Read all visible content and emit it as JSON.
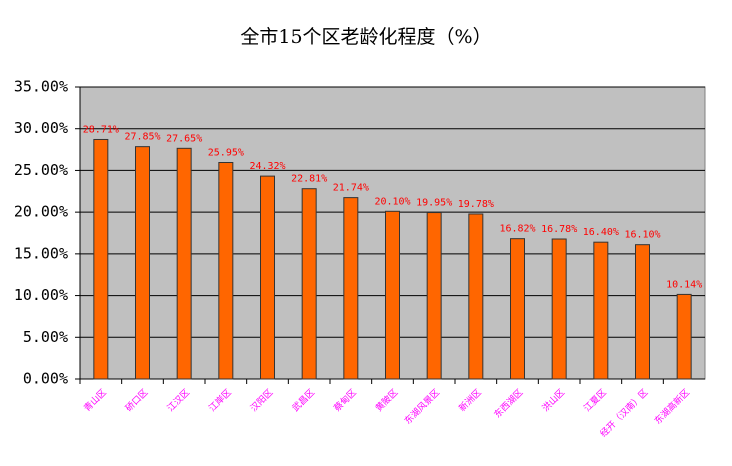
{
  "chart_data": {
    "type": "bar",
    "title": "全市15个区老龄化程度（%）",
    "categories": [
      "青山区",
      "硚口区",
      "江汉区",
      "江岸区",
      "汉阳区",
      "武昌区",
      "蔡甸区",
      "黄陂区",
      "东湖风景区",
      "新洲区",
      "东西湖区",
      "洪山区",
      "江夏区",
      "经开（汉南）区",
      "东湖高新区"
    ],
    "values": [
      28.71,
      27.85,
      27.65,
      25.95,
      24.32,
      22.81,
      21.74,
      20.1,
      19.95,
      19.78,
      16.82,
      16.78,
      16.4,
      16.1,
      10.14
    ],
    "value_labels": [
      "28.71%",
      "27.85%",
      "27.65%",
      "25.95%",
      "24.32%",
      "22.81%",
      "21.74%",
      "20.10%",
      "19.95%",
      "19.78%",
      "16.82%",
      "16.78%",
      "16.40%",
      "16.10%",
      "10.14%"
    ],
    "color": "#ff6600",
    "ylim": [
      0,
      35
    ],
    "yticks": [
      {
        "value": 0,
        "label": "0.00%"
      },
      {
        "value": 5,
        "label": "5.00%"
      },
      {
        "value": 10,
        "label": "10.00%"
      },
      {
        "value": 15,
        "label": "15.00%"
      },
      {
        "value": 20,
        "label": "20.00%"
      },
      {
        "value": 25,
        "label": "25.00%"
      },
      {
        "value": 30,
        "label": "30.00%"
      },
      {
        "value": 35,
        "label": "35.00%"
      }
    ],
    "grid": true
  }
}
